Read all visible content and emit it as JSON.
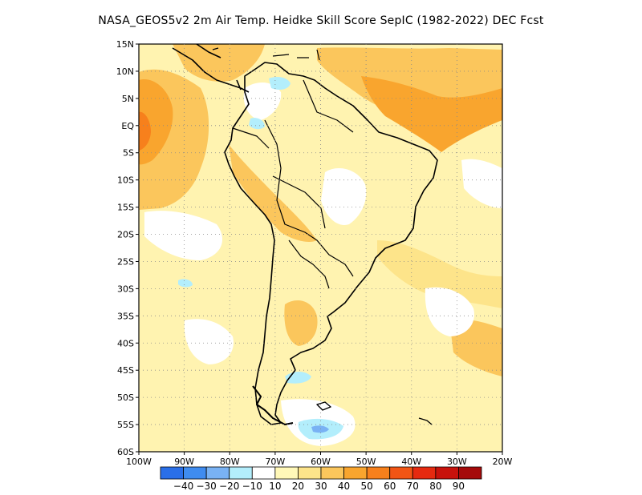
{
  "title": "NASA_GEOS5v2  2m Air Temp. Heidke Skill Score SepIC (1982-2022) DEC Fcst",
  "map": {
    "lon_range": [
      -100,
      -20
    ],
    "lat_range": [
      -60,
      15
    ],
    "lat_ticks": [
      {
        "value": 15,
        "label": "15N"
      },
      {
        "value": 10,
        "label": "10N"
      },
      {
        "value": 5,
        "label": "5N"
      },
      {
        "value": 0,
        "label": "EQ"
      },
      {
        "value": -5,
        "label": "5S"
      },
      {
        "value": -10,
        "label": "10S"
      },
      {
        "value": -15,
        "label": "15S"
      },
      {
        "value": -20,
        "label": "20S"
      },
      {
        "value": -25,
        "label": "25S"
      },
      {
        "value": -30,
        "label": "30S"
      },
      {
        "value": -35,
        "label": "35S"
      },
      {
        "value": -40,
        "label": "40S"
      },
      {
        "value": -45,
        "label": "45S"
      },
      {
        "value": -50,
        "label": "50S"
      },
      {
        "value": -55,
        "label": "55S"
      },
      {
        "value": -60,
        "label": "60S"
      }
    ],
    "lon_ticks": [
      {
        "value": -100,
        "label": "100W"
      },
      {
        "value": -90,
        "label": "90W"
      },
      {
        "value": -80,
        "label": "80W"
      },
      {
        "value": -70,
        "label": "70W"
      },
      {
        "value": -60,
        "label": "60W"
      },
      {
        "value": -50,
        "label": "50W"
      },
      {
        "value": -40,
        "label": "40W"
      },
      {
        "value": -30,
        "label": "30W"
      },
      {
        "value": -20,
        "label": "20W"
      }
    ],
    "grid": "dotted",
    "background_color": "#fff3b0"
  },
  "colorbar": {
    "colors": [
      "#2a6fe8",
      "#3f8cf0",
      "#79b2f4",
      "#b3eefc",
      "#ffffff",
      "#fff8b8",
      "#fde48a",
      "#fbc65c",
      "#f9a52e",
      "#f7801c",
      "#f25515",
      "#e62a10",
      "#c8120c",
      "#a50a0a"
    ],
    "labels": [
      "-40",
      "-30",
      "-20",
      "-10",
      "10",
      "20",
      "30",
      "40",
      "50",
      "60",
      "70",
      "80",
      "90"
    ]
  }
}
